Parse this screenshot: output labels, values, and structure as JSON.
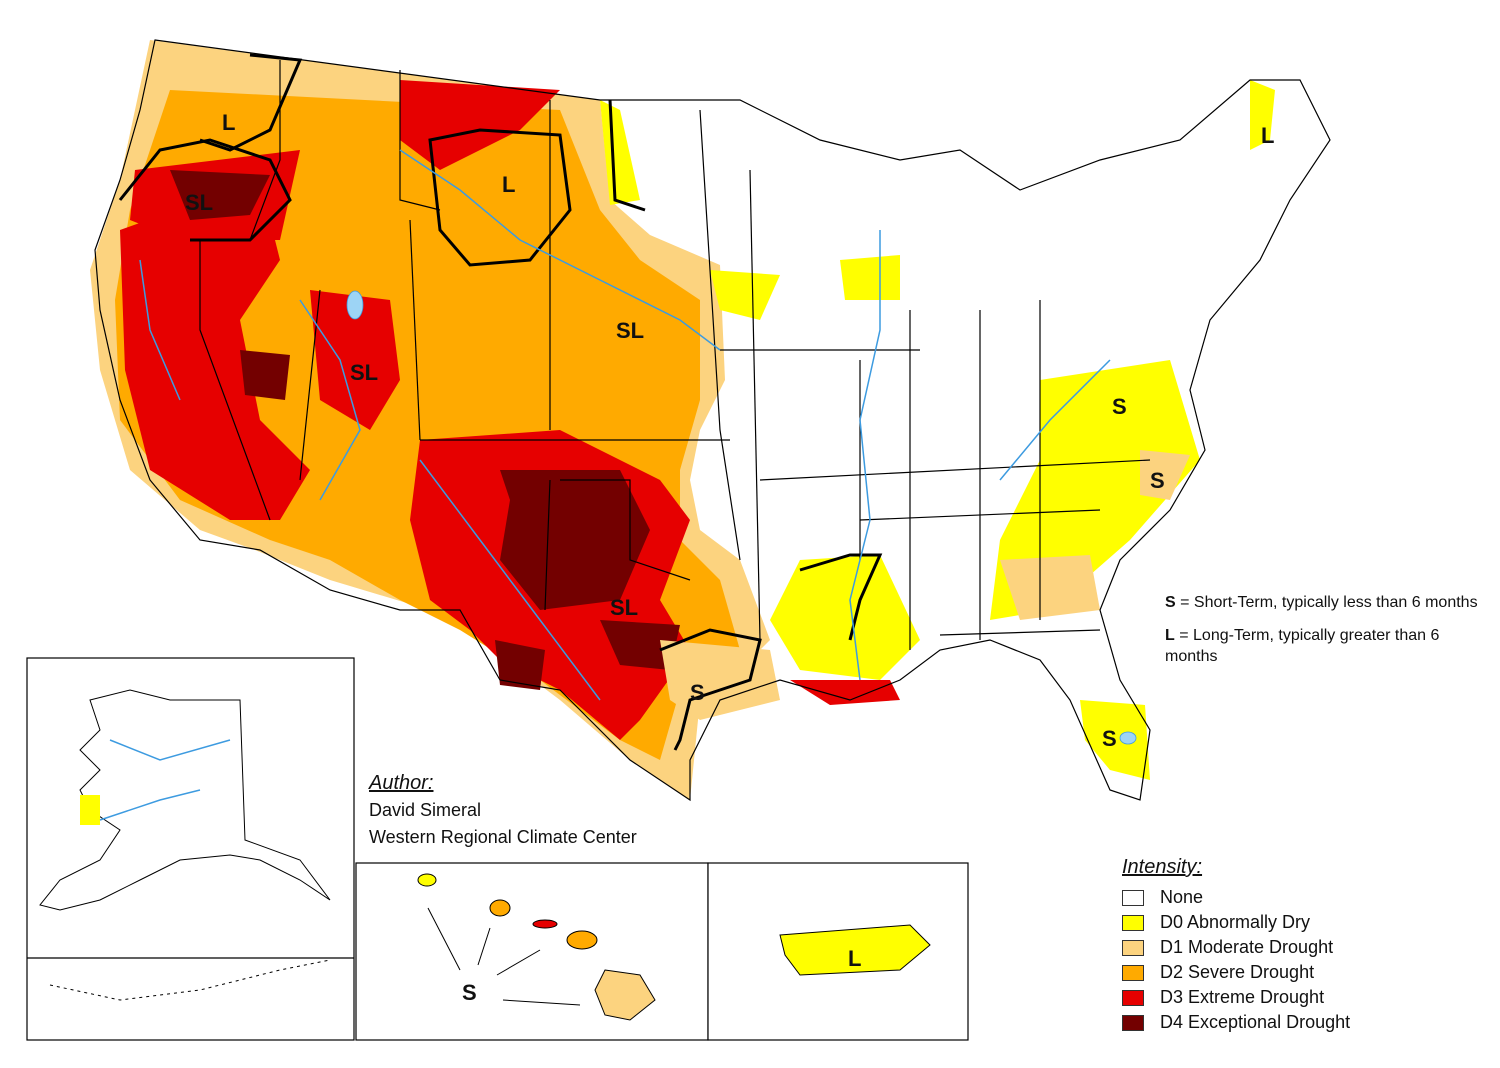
{
  "colors": {
    "none": "#ffffff",
    "d0": "#ffff00",
    "d1": "#fcd37f",
    "d2": "#ffaa00",
    "d3": "#e60000",
    "d4": "#730000",
    "rivers": "#3d9be0",
    "lakes": "#9dd4f5",
    "borders": "#000000"
  },
  "region_labels": {
    "pnw_l": "L",
    "oregon_sl": "SL",
    "montana_l": "L",
    "utah_sl": "SL",
    "plains_sl": "SL",
    "texas_sl": "SL",
    "gulf_s": "S",
    "virginia_s": "S",
    "carolina_s": "S",
    "florida_s": "S",
    "maine_l": "L",
    "hawaii_s": "S",
    "puertorico_l": "L"
  },
  "author": {
    "heading": "Author:",
    "name": "David Simeral",
    "org": "Western Regional Climate Center"
  },
  "notes": {
    "short_key": "S",
    "short_text": " = Short-Term, typically less than 6 months",
    "long_key": "L",
    "long_text": " = Long-Term, typically greater than 6 months"
  },
  "legend": {
    "heading": "Intensity:",
    "items": [
      {
        "label": "None",
        "color": "#ffffff"
      },
      {
        "label": "D0 Abnormally Dry",
        "color": "#ffff00"
      },
      {
        "label": "D1 Moderate Drought",
        "color": "#fcd37f"
      },
      {
        "label": "D2 Severe Drought",
        "color": "#ffaa00"
      },
      {
        "label": "D3 Extreme Drought",
        "color": "#e60000"
      },
      {
        "label": "D4 Exceptional Drought",
        "color": "#730000"
      }
    ]
  }
}
